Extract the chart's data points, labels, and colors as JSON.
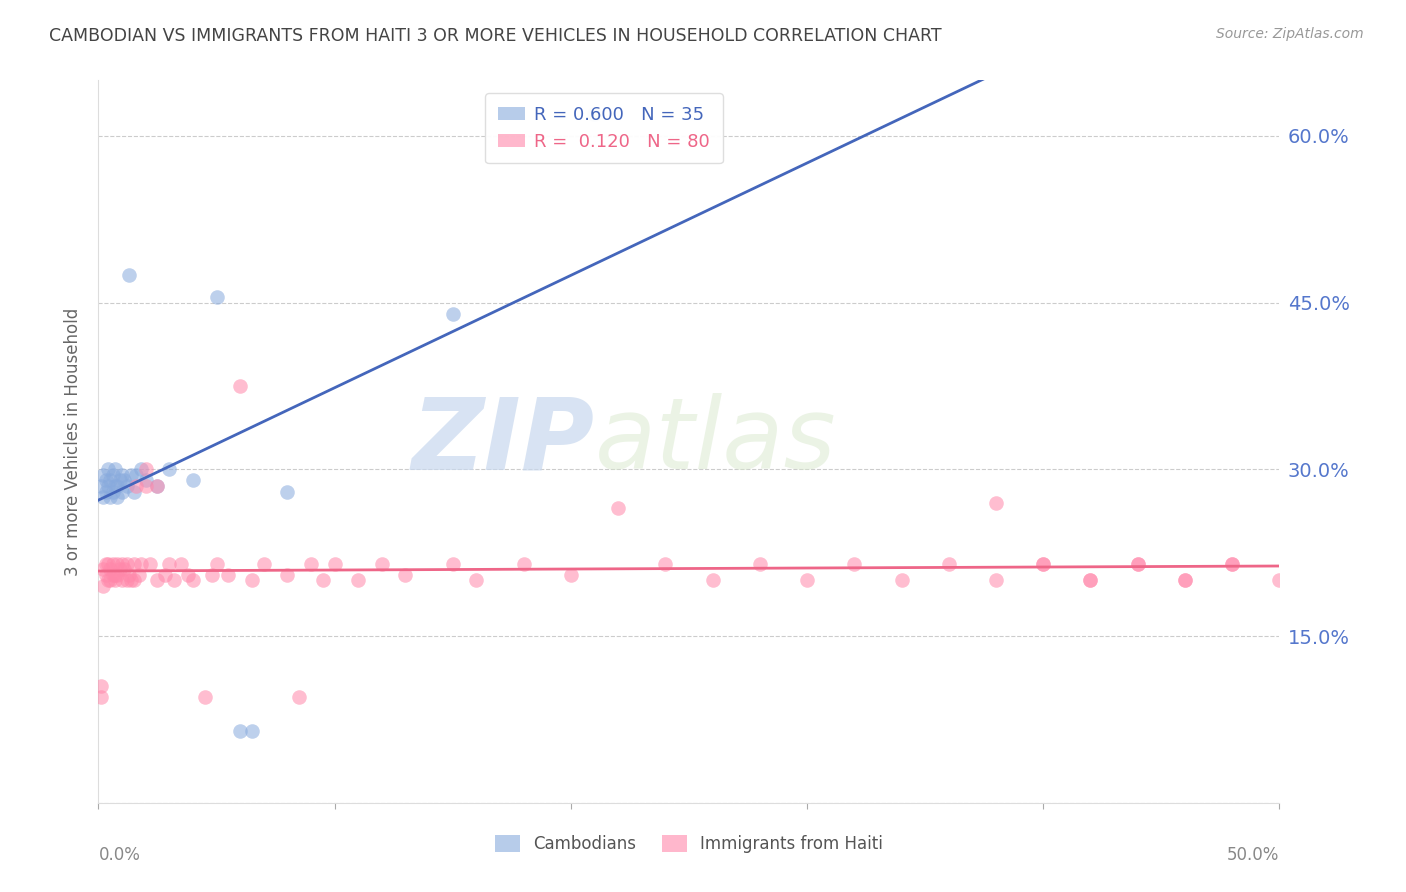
{
  "title": "CAMBODIAN VS IMMIGRANTS FROM HAITI 3 OR MORE VEHICLES IN HOUSEHOLD CORRELATION CHART",
  "source": "Source: ZipAtlas.com",
  "ylabel": "3 or more Vehicles in Household",
  "xmin": 0.0,
  "xmax": 0.5,
  "ymin": 0.0,
  "ymax": 0.65,
  "yticks": [
    0.0,
    0.15,
    0.3,
    0.45,
    0.6
  ],
  "ytick_labels": [
    "",
    "15.0%",
    "30.0%",
    "45.0%",
    "60.0%"
  ],
  "watermark_zip": "ZIP",
  "watermark_atlas": "atlas",
  "legend_cambodian_r": "0.600",
  "legend_cambodian_n": "35",
  "legend_haiti_r": "0.120",
  "legend_haiti_n": "80",
  "legend_label_cambodian": "Cambodians",
  "legend_label_haiti": "Immigrants from Haiti",
  "color_cambodian": "#88AADD",
  "color_haiti": "#FF88AA",
  "color_line_cambodian": "#4466BB",
  "color_line_haiti": "#EE6688",
  "background_color": "#FFFFFF",
  "title_color": "#444444",
  "right_axis_color": "#5577CC",
  "camb_x": [
    0.001,
    0.002,
    0.002,
    0.003,
    0.003,
    0.004,
    0.004,
    0.005,
    0.005,
    0.006,
    0.006,
    0.007,
    0.007,
    0.008,
    0.008,
    0.009,
    0.01,
    0.01,
    0.011,
    0.012,
    0.013,
    0.014,
    0.015,
    0.016,
    0.018,
    0.02,
    0.025,
    0.03,
    0.04,
    0.05,
    0.06,
    0.065,
    0.08,
    0.15,
    0.21
  ],
  "camb_y": [
    0.285,
    0.275,
    0.295,
    0.28,
    0.29,
    0.285,
    0.3,
    0.275,
    0.29,
    0.28,
    0.295,
    0.285,
    0.3,
    0.275,
    0.285,
    0.29,
    0.28,
    0.295,
    0.29,
    0.285,
    0.475,
    0.295,
    0.28,
    0.295,
    0.3,
    0.29,
    0.285,
    0.3,
    0.29,
    0.455,
    0.065,
    0.065,
    0.28,
    0.44,
    0.62
  ],
  "haiti_x": [
    0.001,
    0.001,
    0.002,
    0.002,
    0.003,
    0.003,
    0.004,
    0.004,
    0.005,
    0.005,
    0.006,
    0.006,
    0.007,
    0.007,
    0.008,
    0.008,
    0.009,
    0.01,
    0.01,
    0.011,
    0.012,
    0.012,
    0.013,
    0.014,
    0.015,
    0.015,
    0.016,
    0.017,
    0.018,
    0.02,
    0.02,
    0.022,
    0.025,
    0.025,
    0.028,
    0.03,
    0.032,
    0.035,
    0.038,
    0.04,
    0.045,
    0.048,
    0.05,
    0.055,
    0.06,
    0.065,
    0.07,
    0.08,
    0.085,
    0.09,
    0.095,
    0.1,
    0.11,
    0.12,
    0.13,
    0.15,
    0.16,
    0.18,
    0.2,
    0.22,
    0.24,
    0.26,
    0.28,
    0.3,
    0.32,
    0.34,
    0.36,
    0.38,
    0.4,
    0.42,
    0.44,
    0.46,
    0.48,
    0.5,
    0.38,
    0.4,
    0.42,
    0.44,
    0.46,
    0.48
  ],
  "haiti_y": [
    0.095,
    0.105,
    0.21,
    0.195,
    0.215,
    0.205,
    0.2,
    0.215,
    0.21,
    0.2,
    0.205,
    0.215,
    0.2,
    0.205,
    0.215,
    0.205,
    0.21,
    0.2,
    0.215,
    0.21,
    0.2,
    0.215,
    0.205,
    0.2,
    0.215,
    0.2,
    0.285,
    0.205,
    0.215,
    0.3,
    0.285,
    0.215,
    0.2,
    0.285,
    0.205,
    0.215,
    0.2,
    0.215,
    0.205,
    0.2,
    0.095,
    0.205,
    0.215,
    0.205,
    0.375,
    0.2,
    0.215,
    0.205,
    0.095,
    0.215,
    0.2,
    0.215,
    0.2,
    0.215,
    0.205,
    0.215,
    0.2,
    0.215,
    0.205,
    0.265,
    0.215,
    0.2,
    0.215,
    0.2,
    0.215,
    0.2,
    0.215,
    0.2,
    0.215,
    0.2,
    0.215,
    0.2,
    0.215,
    0.2,
    0.27,
    0.215,
    0.2,
    0.215,
    0.2,
    0.215
  ]
}
